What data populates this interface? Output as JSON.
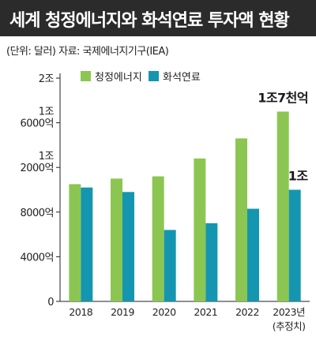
{
  "header": {
    "title": "세계 청정에너지와 화석연료 투자액 현황",
    "subtitle": "(단위: 달러) 자료: 국제에너지기구(IEA)"
  },
  "colors": {
    "title_bg": "#2b2b2b",
    "clean_energy": "#8cc652",
    "fossil_fuel": "#1496b0"
  },
  "chart_data": {
    "type": "bar",
    "title": "세계 청정에너지와 화석연료 투자액 현황",
    "unit": "달러",
    "categories": [
      "2018",
      "2019",
      "2020",
      "2021",
      "2022",
      "2023년"
    ],
    "category_note": "(추정치)",
    "series": [
      {
        "name": "청정에너지",
        "values": [
          10500,
          11000,
          11200,
          12800,
          14600,
          17000
        ]
      },
      {
        "name": "화석연료",
        "values": [
          10200,
          9800,
          6400,
          7000,
          8300,
          10000
        ]
      }
    ],
    "data_labels": [
      {
        "series": "청정에너지",
        "category": "2023년",
        "text": "1조7천억"
      },
      {
        "series": "화석연료",
        "category": "2023년",
        "text": "1조"
      }
    ],
    "yticks": [
      {
        "value": 0,
        "lines": [
          "0"
        ]
      },
      {
        "value": 4000,
        "lines": [
          "4000억"
        ]
      },
      {
        "value": 8000,
        "lines": [
          "8000억"
        ]
      },
      {
        "value": 12000,
        "lines": [
          "1조",
          "2000억"
        ]
      },
      {
        "value": 16000,
        "lines": [
          "1조",
          "6000억"
        ]
      },
      {
        "value": 20000,
        "lines": [
          "2조"
        ]
      }
    ],
    "ylim": [
      0,
      20000
    ],
    "y_unit": "억 달러",
    "grid": false,
    "legend_position": "top-left"
  }
}
